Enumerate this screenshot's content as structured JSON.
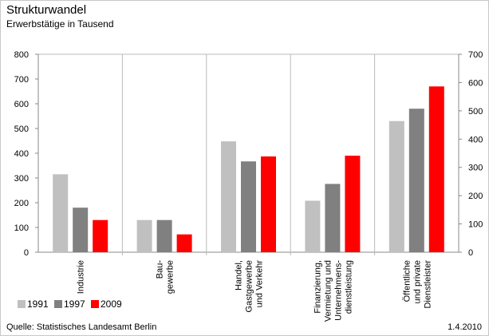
{
  "header": {
    "title": "Strukturwandel",
    "subtitle": "Erwerbstätige in Tausend"
  },
  "footer": {
    "source": "Quelle: Statistisches Landesamt Berlin",
    "date": "1.4.2010"
  },
  "chart_data": {
    "type": "bar",
    "categories": [
      [
        "Industrie"
      ],
      [
        "Bau-",
        "gewerbe"
      ],
      [
        "Handel,",
        "Gastgewerbe",
        "und Verkehr"
      ],
      [
        "Finanzierung,",
        "Vermietung und",
        "Unternehmens-",
        "dienstleistung"
      ],
      [
        "Öffentliche",
        "und private",
        "Dienstleister"
      ]
    ],
    "series": [
      {
        "name": "1991",
        "color": "#c0c0c0",
        "values": [
          315,
          130,
          448,
          208,
          530
        ]
      },
      {
        "name": "1997",
        "color": "#808080",
        "values": [
          180,
          130,
          367,
          276,
          580
        ]
      },
      {
        "name": "2009",
        "color": "#ff0000",
        "values": [
          130,
          72,
          387,
          390,
          670
        ]
      }
    ],
    "y_left": {
      "min": 0,
      "max": 800,
      "ticks": [
        "0",
        "100",
        "200",
        "300",
        "400",
        "500",
        "600",
        "700",
        "800"
      ]
    },
    "y_right": {
      "min": 0,
      "max": 700,
      "ticks": [
        "0",
        "100",
        "200",
        "300",
        "400",
        "500",
        "600",
        "700"
      ]
    },
    "grid": "vertical category separators only",
    "legend_position": "bottom-left"
  }
}
